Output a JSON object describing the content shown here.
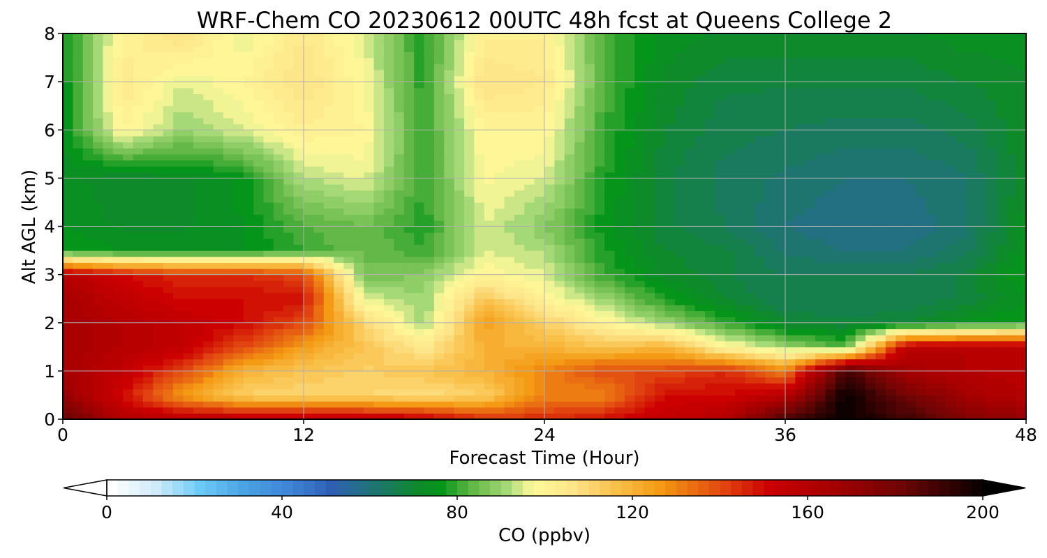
{
  "chart_data": {
    "type": "heatmap",
    "title": "WRF-Chem CO  20230612 00UTC 48h fcst at Queens College 2",
    "xlabel": "Forecast Time (Hour)",
    "ylabel": "Alt AGL (km)",
    "xlim": [
      0,
      48
    ],
    "ylim": [
      0,
      8
    ],
    "x_ticks": [
      "0",
      "12",
      "24",
      "36",
      "48"
    ],
    "y_ticks": [
      "0",
      "1",
      "2",
      "3",
      "4",
      "5",
      "6",
      "7",
      "8"
    ],
    "grid": true,
    "x": [
      0,
      3,
      6,
      9,
      12,
      15,
      18,
      21,
      24,
      27,
      30,
      33,
      36,
      39,
      42,
      45,
      48
    ],
    "y": [
      0,
      0.5,
      1,
      1.5,
      2,
      2.5,
      3,
      3.5,
      4,
      5,
      6,
      7,
      8
    ],
    "z_units": "ppbv",
    "z": [
      [
        185,
        160,
        158,
        158,
        158,
        158,
        155,
        145,
        145,
        150,
        155,
        160,
        190,
        200,
        190,
        175,
        170
      ],
      [
        170,
        150,
        125,
        112,
        110,
        110,
        108,
        112,
        130,
        130,
        150,
        150,
        158,
        200,
        180,
        165,
        160
      ],
      [
        165,
        155,
        140,
        120,
        115,
        112,
        115,
        120,
        130,
        140,
        140,
        145,
        130,
        190,
        165,
        160,
        158
      ],
      [
        165,
        160,
        155,
        140,
        125,
        115,
        105,
        120,
        120,
        115,
        120,
        100,
        90,
        82,
        158,
        160,
        158
      ],
      [
        165,
        160,
        155,
        150,
        140,
        110,
        90,
        125,
        112,
        100,
        90,
        80,
        70,
        68,
        70,
        75,
        78
      ],
      [
        165,
        155,
        150,
        150,
        150,
        95,
        90,
        115,
        100,
        90,
        78,
        70,
        65,
        65,
        65,
        68,
        75
      ],
      [
        160,
        150,
        145,
        145,
        140,
        85,
        88,
        100,
        95,
        80,
        72,
        68,
        65,
        65,
        65,
        68,
        78
      ],
      [
        78,
        75,
        75,
        75,
        80,
        85,
        80,
        95,
        92,
        78,
        70,
        68,
        62,
        60,
        60,
        64,
        75
      ],
      [
        75,
        72,
        72,
        75,
        82,
        85,
        78,
        95,
        88,
        76,
        68,
        65,
        60,
        58,
        58,
        62,
        74
      ],
      [
        74,
        70,
        72,
        76,
        92,
        96,
        80,
        98,
        95,
        78,
        68,
        64,
        62,
        60,
        60,
        62,
        72
      ],
      [
        74,
        100,
        90,
        95,
        102,
        100,
        80,
        100,
        100,
        80,
        70,
        66,
        65,
        64,
        64,
        66,
        72
      ],
      [
        75,
        105,
        95,
        100,
        108,
        98,
        78,
        108,
        105,
        82,
        72,
        68,
        68,
        68,
        68,
        70,
        72
      ],
      [
        76,
        100,
        108,
        95,
        105,
        95,
        78,
        102,
        102,
        82,
        74,
        72,
        72,
        72,
        72,
        74,
        74
      ]
    ],
    "colorbar": {
      "label": "CO  (ppbv)",
      "min": 0,
      "max": 200,
      "step": 2.5,
      "ticks": [
        "0",
        "40",
        "80",
        "120",
        "160",
        "200"
      ],
      "extend": "both",
      "anchors": [
        {
          "v": 0,
          "c": "#ffffff"
        },
        {
          "v": 10,
          "c": "#cfeaf8"
        },
        {
          "v": 20,
          "c": "#6ccbf6"
        },
        {
          "v": 30,
          "c": "#4aa3e3"
        },
        {
          "v": 40,
          "c": "#3f86d8"
        },
        {
          "v": 50,
          "c": "#2f5fb5"
        },
        {
          "v": 60,
          "c": "#1e7570"
        },
        {
          "v": 70,
          "c": "#0e8a2a"
        },
        {
          "v": 75,
          "c": "#05951a"
        },
        {
          "v": 82,
          "c": "#5fb644"
        },
        {
          "v": 90,
          "c": "#a5d877"
        },
        {
          "v": 96,
          "c": "#fffa9a"
        },
        {
          "v": 105,
          "c": "#fde58a"
        },
        {
          "v": 115,
          "c": "#f9c04a"
        },
        {
          "v": 125,
          "c": "#f49a14"
        },
        {
          "v": 140,
          "c": "#e0430f"
        },
        {
          "v": 150,
          "c": "#cc0000"
        },
        {
          "v": 165,
          "c": "#a30000"
        },
        {
          "v": 180,
          "c": "#6f0505"
        },
        {
          "v": 200,
          "c": "#000000"
        }
      ]
    }
  }
}
